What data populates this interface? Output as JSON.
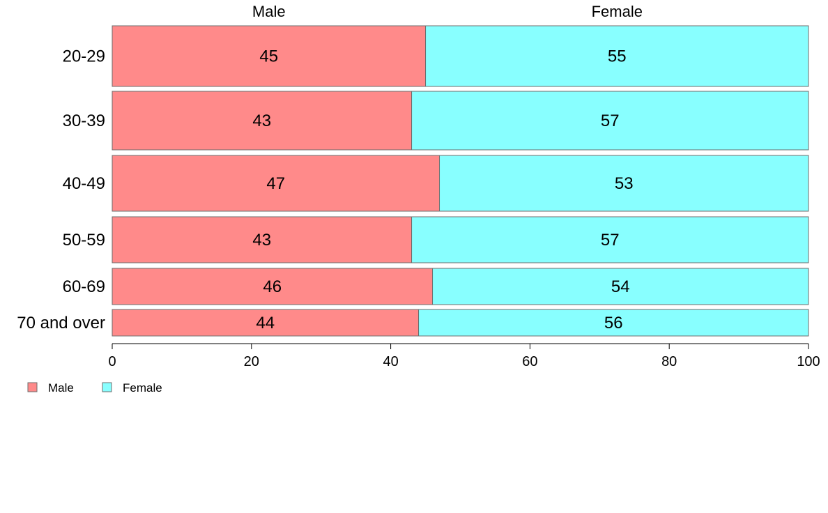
{
  "chart_data": {
    "type": "bar",
    "orientation": "horizontal",
    "stacked": true,
    "categories": [
      "20-29",
      "30-39",
      "40-49",
      "50-59",
      "60-69",
      "70 and over"
    ],
    "series": [
      {
        "name": "Male",
        "values": [
          45,
          43,
          47,
          43,
          46,
          44
        ],
        "color": "#FF8A8A"
      },
      {
        "name": "Female",
        "values": [
          55,
          57,
          53,
          57,
          54,
          56
        ],
        "color": "#88FFFF"
      }
    ],
    "column_headers": [
      "Male",
      "Female"
    ],
    "xlim": [
      0,
      100
    ],
    "xticks": [
      0,
      20,
      40,
      60,
      80,
      100
    ],
    "tick_labels": [
      "0",
      "20",
      "40",
      "60",
      "80",
      "100"
    ],
    "legend": {
      "placement": "bottom-left",
      "entries": [
        "Male",
        "Female"
      ]
    },
    "grid": false
  }
}
